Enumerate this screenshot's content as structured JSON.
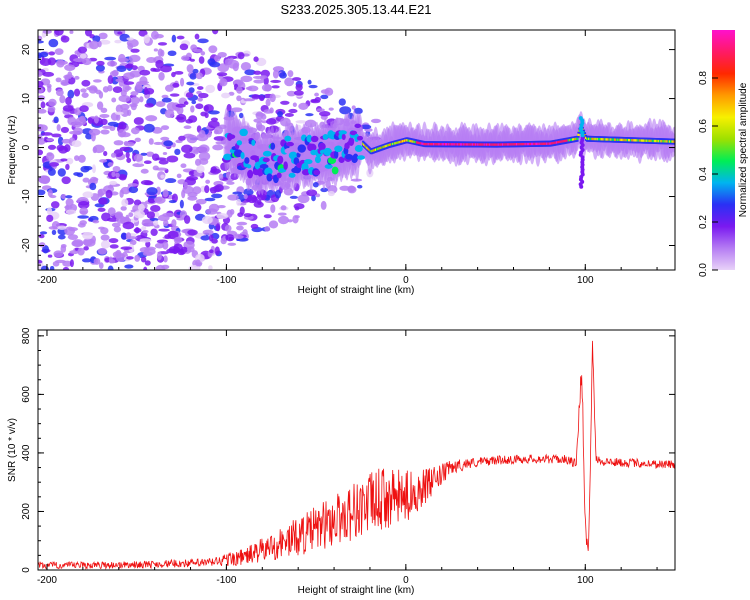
{
  "figure": {
    "title": "S233.2025.305.13.44.E21"
  },
  "chart_data": [
    {
      "type": "heatmap",
      "name": "spectrogram",
      "xlabel": "Height of straight line (km)",
      "ylabel": "Frequency (Hz)",
      "xlim": [
        -205,
        150
      ],
      "ylim": [
        -25,
        24
      ],
      "xticks": [
        -200,
        -100,
        0,
        100
      ],
      "yticks": [
        -20,
        -10,
        0,
        10,
        20
      ],
      "grid": false,
      "colorbar": {
        "label": "Normalized spectral amplitude",
        "range": [
          0,
          1
        ],
        "ticks": [
          0.0,
          0.2,
          0.4,
          0.6,
          0.8
        ],
        "tick_labels": [
          "0.0",
          "0.2",
          "0.4",
          "0.6",
          "0.8"
        ],
        "colors": [
          "#e8d2f8",
          "#b57cf3",
          "#7a19f0",
          "#2a30f5",
          "#00b4f0",
          "#00ee55",
          "#9ee000",
          "#f7f000",
          "#ff9a00",
          "#ff2800",
          "#ff1a66",
          "#ff10cc"
        ]
      },
      "ridge": {
        "description": "dominant spectral line",
        "points": [
          {
            "x": -100,
            "y": 1.5
          },
          {
            "x": -80,
            "y": -3
          },
          {
            "x": -60,
            "y": -1.5
          },
          {
            "x": -40,
            "y": -1
          },
          {
            "x": -25,
            "y": 1
          },
          {
            "x": -20,
            "y": -0.8
          },
          {
            "x": -10,
            "y": 0.5
          },
          {
            "x": 0,
            "y": 1.5
          },
          {
            "x": 10,
            "y": 0.7
          },
          {
            "x": 50,
            "y": 0.6
          },
          {
            "x": 80,
            "y": 0.8
          },
          {
            "x": 95,
            "y": 1.8
          },
          {
            "x": 97,
            "y": 4.5
          },
          {
            "x": 100,
            "y": 1.8
          },
          {
            "x": 150,
            "y": 1.2
          }
        ],
        "peak_amplitude": 0.98,
        "onset_x": -25
      },
      "spike": {
        "x": 98,
        "y_from": -8,
        "y_to": 6
      }
    },
    {
      "type": "line",
      "name": "snr",
      "xlabel": "Height of straight line (km)",
      "ylabel": "SNR (10 * v/v)",
      "xlim": [
        -205,
        150
      ],
      "ylim": [
        0,
        820
      ],
      "xticks": [
        -200,
        -100,
        0,
        100
      ],
      "yticks": [
        0,
        200,
        400,
        600,
        800
      ],
      "grid": false,
      "series": [
        {
          "name": "SNR",
          "color": "#ee1111",
          "x": [
            -205,
            -150,
            -110,
            -90,
            -70,
            -50,
            -30,
            -15,
            0,
            15,
            25,
            35,
            50,
            70,
            90,
            95,
            98,
            100,
            102,
            104,
            106,
            110,
            130,
            150
          ],
          "values": [
            15,
            18,
            25,
            45,
            90,
            140,
            200,
            240,
            250,
            300,
            350,
            365,
            375,
            380,
            378,
            360,
            700,
            140,
            80,
            800,
            380,
            370,
            365,
            360
          ],
          "noise_amplitude": [
            12,
            12,
            15,
            30,
            55,
            80,
            100,
            110,
            90,
            50,
            25,
            18,
            15,
            15,
            15,
            20,
            40,
            40,
            40,
            40,
            20,
            15,
            15,
            15
          ]
        }
      ]
    }
  ]
}
